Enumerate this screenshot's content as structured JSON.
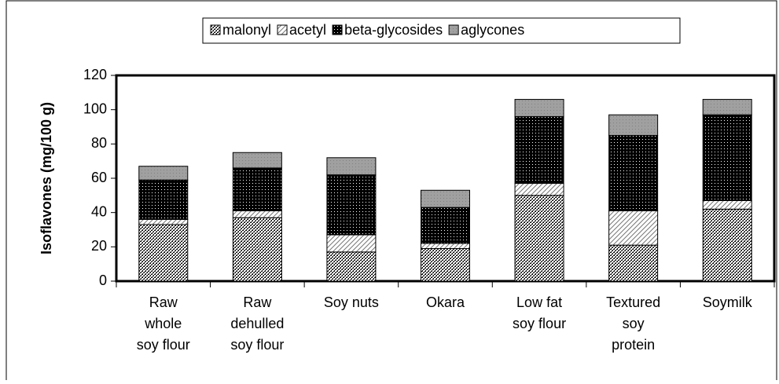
{
  "chart_data": {
    "type": "stacked-bar",
    "y_label": "Isoflavones (mg/100 g)",
    "categories": [
      [
        "Raw",
        "whole",
        "soy flour"
      ],
      [
        "Raw",
        "dehulled",
        "soy flour"
      ],
      [
        "Soy nuts"
      ],
      [
        "Okara"
      ],
      [
        "Low fat",
        "soy flour"
      ],
      [
        "Textured",
        "soy",
        "protein"
      ],
      [
        "Soymilk"
      ]
    ],
    "series": [
      {
        "name": "malonyl",
        "color": "#ffffff",
        "values": [
          33,
          37,
          17,
          19,
          50,
          21,
          42
        ]
      },
      {
        "name": "acetyl",
        "color": "#ffffff",
        "values": [
          3,
          4,
          10,
          3,
          7,
          20,
          5
        ]
      },
      {
        "name": "beta-glycosides",
        "color": "#000000",
        "values": [
          23,
          25,
          35,
          21,
          39,
          44,
          50
        ]
      },
      {
        "name": "aglycones",
        "color": "#a0a0a0",
        "values": [
          8,
          9,
          10,
          10,
          10,
          12,
          9
        ]
      }
    ],
    "ylim": [
      0,
      120
    ],
    "yticks": [
      0,
      20,
      40,
      60,
      80,
      100,
      120
    ],
    "legend": "top"
  }
}
